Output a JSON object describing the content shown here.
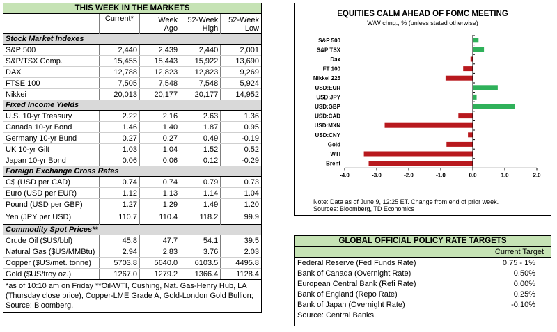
{
  "markets": {
    "title": "THIS WEEK IN THE MARKETS",
    "headers": [
      "Current*",
      "Week\nAgo",
      "52-Week\nHigh",
      "52-Week\nLow"
    ],
    "sections": [
      {
        "name": "Stock Market Indexes",
        "rows": [
          {
            "label": "S&P 500",
            "values": [
              "2,440",
              "2,439",
              "2,440",
              "2,001"
            ]
          },
          {
            "label": "S&P/TSX Comp.",
            "values": [
              "15,455",
              "15,443",
              "15,922",
              "13,690"
            ]
          },
          {
            "label": "DAX",
            "values": [
              "12,788",
              "12,823",
              "12,823",
              "9,269"
            ]
          },
          {
            "label": "FTSE 100",
            "values": [
              "7,505",
              "7,548",
              "7,548",
              "5,924"
            ]
          },
          {
            "label": "Nikkei",
            "values": [
              "20,013",
              "20,177",
              "20,177",
              "14,952"
            ]
          }
        ]
      },
      {
        "name": "Fixed Income Yields",
        "rows": [
          {
            "label": "U.S. 10-yr Treasury",
            "values": [
              "2.22",
              "2.16",
              "2.63",
              "1.36"
            ]
          },
          {
            "label": "Canada 10-yr Bond",
            "values": [
              "1.46",
              "1.40",
              "1.87",
              "0.95"
            ]
          },
          {
            "label": "Germany 10-yr Bund",
            "values": [
              "0.27",
              "0.27",
              "0.49",
              "-0.19"
            ]
          },
          {
            "label": "UK 10-yr Gilt",
            "values": [
              "1.03",
              "1.04",
              "1.52",
              "0.52"
            ]
          },
          {
            "label": "Japan 10-yr Bond",
            "values": [
              "0.06",
              "0.06",
              "0.12",
              "-0.29"
            ]
          }
        ]
      },
      {
        "name": "Foreign Exchange Cross Rates",
        "rows": [
          {
            "label": "C$ (USD per CAD)",
            "values": [
              "0.74",
              "0.74",
              "0.79",
              "0.73"
            ]
          },
          {
            "label": "Euro (USD per EUR)",
            "values": [
              "1.12",
              "1.13",
              "1.14",
              "1.04"
            ]
          },
          {
            "label": "Pound (USD per GBP)",
            "values": [
              "1.27",
              "1.29",
              "1.49",
              "1.20"
            ]
          },
          {
            "label": "Yen (JPY per USD)",
            "values": [
              "110.7",
              "110.4",
              "118.2",
              "99.9"
            ]
          }
        ]
      },
      {
        "name": "Commodity Spot Prices**",
        "rows": [
          {
            "label": "Crude Oil ($US/bbl)",
            "values": [
              "45.8",
              "47.7",
              "54.1",
              "39.5"
            ]
          },
          {
            "label": "Natural Gas ($US/MMBtu)",
            "values": [
              "2.94",
              "2.83",
              "3.76",
              "2.03"
            ]
          },
          {
            "label": "Copper ($US/met. tonne)",
            "values": [
              "5703.8",
              "5640.0",
              "6103.5",
              "4495.8"
            ]
          },
          {
            "label": "Gold ($US/troy oz.)",
            "values": [
              "1267.0",
              "1279.2",
              "1366.4",
              "1128.4"
            ]
          }
        ]
      }
    ],
    "footnote": "*as of 10:10 am on Friday **Oil-WTI, Cushing, Nat. Gas-Henry Hub, LA (Thursday close price), Copper-LME Grade A, Gold-London Gold Bullion; Source: Bloomberg."
  },
  "chart_data": {
    "type": "bar",
    "orientation": "horizontal",
    "title": "EQUITIES CALM AHEAD OF FOMC MEETING",
    "subtitle": "W/W chng.; % (unless stated otherwise)",
    "categories": [
      "S&P 500",
      "S&P TSX",
      "Dax",
      "FT 100",
      "Nikkei 225",
      "USD:EUR",
      "USD:JPY",
      "USD:GBP",
      "USD:CAD",
      "USD:MXN",
      "USD:CNY",
      "Gold",
      "WTI",
      "Brent"
    ],
    "values": [
      0.18,
      0.35,
      -0.07,
      -0.3,
      -0.85,
      0.78,
      0.12,
      1.32,
      -0.45,
      -2.75,
      -0.15,
      -0.82,
      -3.4,
      -3.25
    ],
    "xlim": [
      -4.0,
      2.0
    ],
    "xticks": [
      "-4.0",
      "-3.0",
      "-2.0",
      "-1.0",
      "0.0",
      "1.0",
      "2.0"
    ],
    "colors": {
      "positive": "#2fb15a",
      "negative": "#b8191e"
    },
    "note": "Note: Data as of June 9, 12:25 ET. Change from end of prior week.",
    "source": "Sources: Bloomberg, TD Economics"
  },
  "policy": {
    "title": "GLOBAL OFFICIAL POLICY RATE TARGETS",
    "column": "Current Target",
    "rows": [
      {
        "label": "Federal Reserve (Fed Funds Rate)",
        "value": "0.75 - 1%"
      },
      {
        "label": "Bank of Canada (Overnight Rate)",
        "value": "0.50%"
      },
      {
        "label": "European Central Bank (Refi Rate)",
        "value": "0.00%"
      },
      {
        "label": "Bank of England (Repo Rate)",
        "value": "0.25%"
      },
      {
        "label": "Bank of Japan (Overnight Rate)",
        "value": "-0.10%"
      }
    ],
    "source": "Source: Central Banks."
  },
  "colors": {
    "header_green": "#c6e3b5",
    "section_grey": "#d9d9d9"
  }
}
